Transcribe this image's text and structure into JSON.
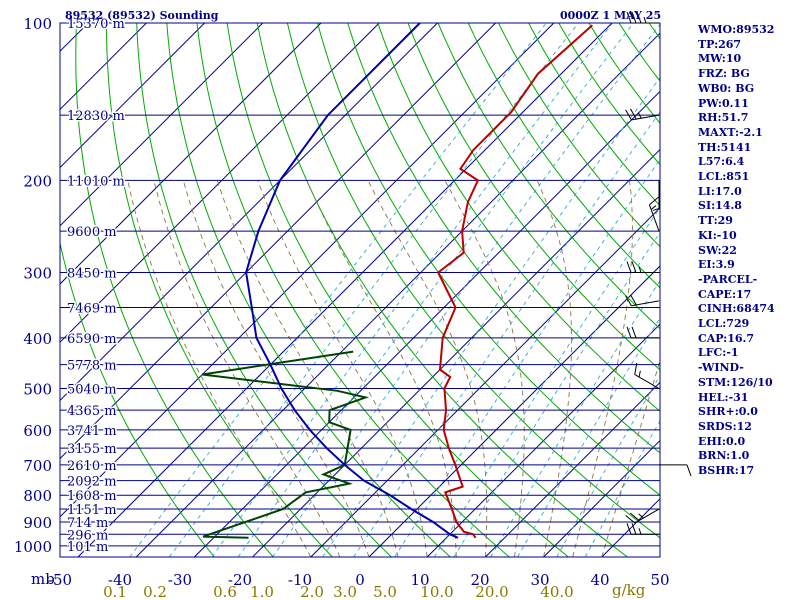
{
  "header": {
    "station_title": "89532 (89532) Sounding",
    "time_title": "0000Z  1 MAY 25"
  },
  "colors": {
    "isobar": "#000088",
    "temperature": "#bb0000",
    "dewpoint": "#004400",
    "parcel": "#0000aa",
    "dry_adiabat": "#00aa00",
    "moist_adiabat": "#887744",
    "mixing_ratio": "#33aacc",
    "isotherm": "#000088",
    "text": "#000088",
    "mixing_label": "#887700"
  },
  "chart_data": {
    "type": "line",
    "title": "89532 (89532) Sounding",
    "pressure_unit": "mb",
    "pressure_levels": [
      100,
      200,
      300,
      400,
      500,
      600,
      700,
      800,
      900,
      1000
    ],
    "temperature_ticks": [
      -50,
      -40,
      -30,
      -20,
      -10,
      0,
      10,
      20,
      30,
      40,
      50
    ],
    "mixing_ratio_labels": [
      "0.1",
      "0.2",
      "0.6",
      "1.0",
      "2.0",
      "3.0",
      "5.0",
      "10.0",
      "20.0",
      "40.0"
    ],
    "mixing_ratio_unit": "g/kg",
    "height_labels": [
      {
        "p": 100,
        "label": "15370 m"
      },
      {
        "p": 150,
        "label": "12830 m"
      },
      {
        "p": 200,
        "label": "11010 m"
      },
      {
        "p": 250,
        "label": "9600 m"
      },
      {
        "p": 300,
        "label": "8450 m"
      },
      {
        "p": 350,
        "label": "7469 m"
      },
      {
        "p": 400,
        "label": "6590 m"
      },
      {
        "p": 450,
        "label": "5778 m"
      },
      {
        "p": 500,
        "label": "5040 m"
      },
      {
        "p": 550,
        "label": "4365 m"
      },
      {
        "p": 600,
        "label": "3741 m"
      },
      {
        "p": 650,
        "label": "3155 m"
      },
      {
        "p": 700,
        "label": "2610 m"
      },
      {
        "p": 750,
        "label": "2092 m"
      },
      {
        "p": 800,
        "label": "1608 m"
      },
      {
        "p": 850,
        "label": "1151 m"
      },
      {
        "p": 900,
        "label": "714 m"
      },
      {
        "p": 950,
        "label": "296 m"
      },
      {
        "p": 1000,
        "label": "101 m"
      }
    ],
    "series": [
      {
        "key": "temperature",
        "values": [
          [
            101,
            -53
          ],
          [
            125,
            -54
          ],
          [
            148,
            -52
          ],
          [
            175,
            -52
          ],
          [
            190,
            -51
          ],
          [
            200,
            -46
          ],
          [
            220,
            -44
          ],
          [
            250,
            -40
          ],
          [
            275,
            -36
          ],
          [
            300,
            -37
          ],
          [
            350,
            -28
          ],
          [
            400,
            -25
          ],
          [
            460,
            -20
          ],
          [
            475,
            -17
          ],
          [
            500,
            -16
          ],
          [
            550,
            -12
          ],
          [
            600,
            -9
          ],
          [
            650,
            -5
          ],
          [
            700,
            -1
          ],
          [
            770,
            4
          ],
          [
            790,
            2
          ],
          [
            850,
            6
          ],
          [
            900,
            9
          ],
          [
            940,
            12
          ],
          [
            950,
            14
          ],
          [
            965,
            15
          ]
        ]
      },
      {
        "key": "dewpoint",
        "values": [
          [
            425,
            -38
          ],
          [
            470,
            -60
          ],
          [
            505,
            -34
          ],
          [
            520,
            -28
          ],
          [
            550,
            -32
          ],
          [
            580,
            -30
          ],
          [
            600,
            -25
          ],
          [
            700,
            -20
          ],
          [
            730,
            -22
          ],
          [
            760,
            -16
          ],
          [
            790,
            -22
          ],
          [
            850,
            -23
          ],
          [
            960,
            -32
          ],
          [
            965,
            -24
          ]
        ]
      },
      {
        "key": "parcel",
        "values": [
          [
            100,
            -83
          ],
          [
            150,
            -83
          ],
          [
            200,
            -80
          ],
          [
            250,
            -75
          ],
          [
            300,
            -70
          ],
          [
            350,
            -63
          ],
          [
            400,
            -57
          ],
          [
            450,
            -50
          ],
          [
            500,
            -44
          ],
          [
            550,
            -38
          ],
          [
            600,
            -32
          ],
          [
            650,
            -26
          ],
          [
            700,
            -20
          ],
          [
            750,
            -14
          ],
          [
            800,
            -7
          ],
          [
            850,
            -1
          ],
          [
            900,
            5
          ],
          [
            950,
            10
          ],
          [
            965,
            12
          ]
        ]
      }
    ],
    "wind_barbs": [
      {
        "p": 100,
        "dir": 270,
        "kt": 35
      },
      {
        "p": 150,
        "dir": 260,
        "kt": 25
      },
      {
        "p": 200,
        "dir": 180,
        "kt": 5
      },
      {
        "p": 250,
        "dir": 340,
        "kt": 15
      },
      {
        "p": 300,
        "dir": 270,
        "kt": 25
      },
      {
        "p": 340,
        "dir": 260,
        "kt": 20
      },
      {
        "p": 400,
        "dir": 270,
        "kt": 20
      },
      {
        "p": 500,
        "dir": 300,
        "kt": 15
      },
      {
        "p": 700,
        "dir": 90,
        "kt": 10
      },
      {
        "p": 850,
        "dir": 240,
        "kt": 25
      },
      {
        "p": 950,
        "dir": 270,
        "kt": 25
      }
    ]
  },
  "indices": [
    "WMO:89532",
    "TP:267",
    "MW:10",
    "FRZ: BG",
    "WB0: BG",
    "PW:0.11",
    "RH:51.7",
    "MAXT:-2.1",
    "TH:5141",
    "L57:6.4",
    "LCL:851",
    "LI:17.0",
    "SI:14.8",
    "TT:29",
    "KI:-10",
    "SW:22",
    "EI:3.9",
    "-PARCEL-",
    "CAPE:17",
    "CINH:68474",
    "LCL:729",
    "CAP:16.7",
    "LFC:-1",
    "-WIND-",
    "STM:126/10",
    "HEL:-31",
    "SHR+:0.0",
    "SRDS:12",
    "EHI:0.0",
    "BRN:1.0",
    "BSHR:17"
  ]
}
